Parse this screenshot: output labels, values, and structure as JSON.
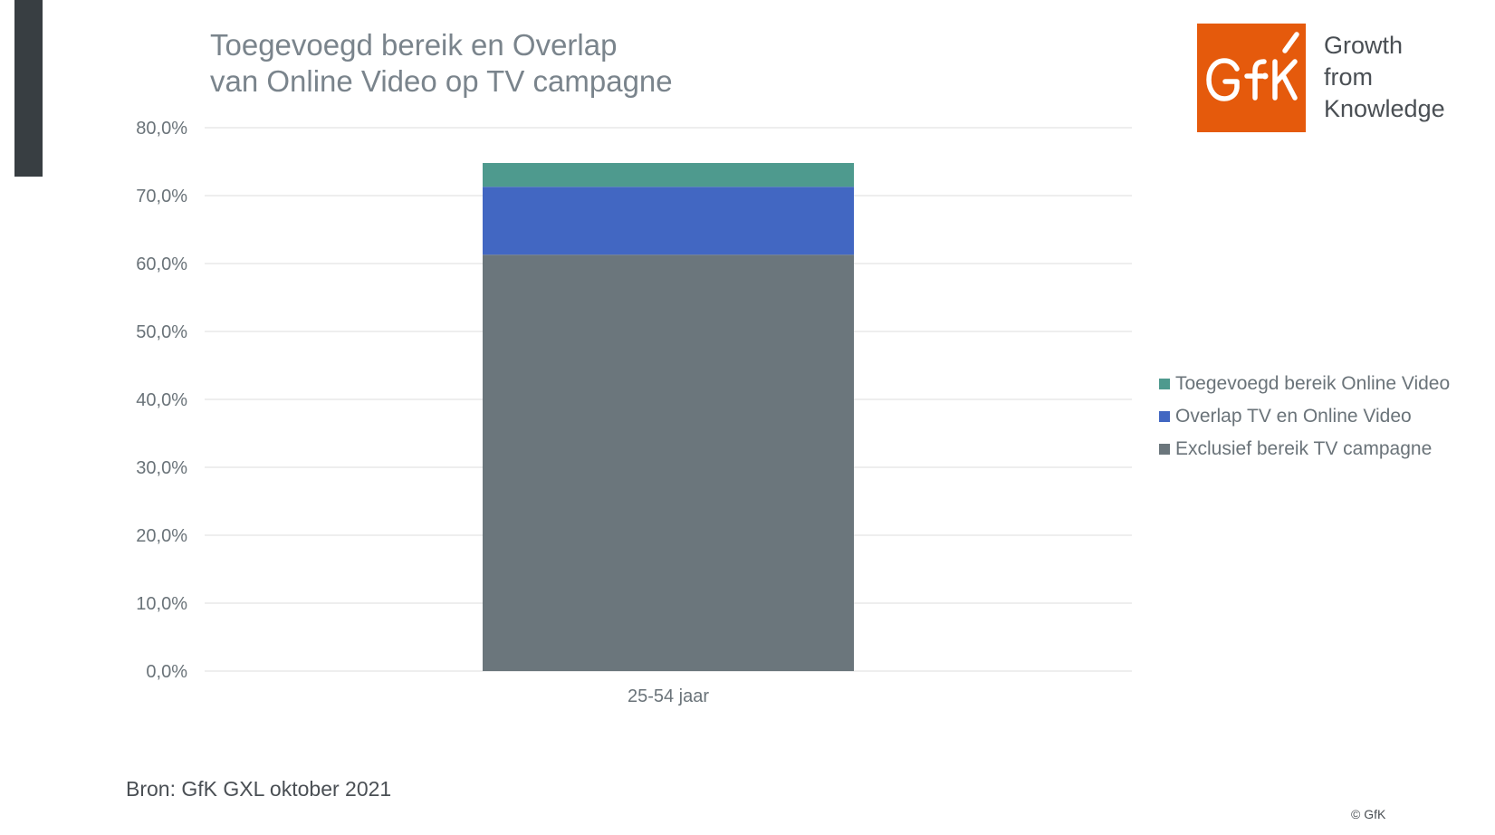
{
  "title": {
    "line1": "Toegevoegd bereik en Overlap",
    "line2": "van Online Video op TV campagne"
  },
  "logo": {
    "mark": "GfK",
    "tagline": [
      "Growth",
      "from",
      "Knowledge"
    ],
    "color": "#e55a0c"
  },
  "source": "Bron: GfK GXL oktober 2021",
  "copyright": "© GfK",
  "chart_data": {
    "type": "bar",
    "stacked": true,
    "categories": [
      "25-54 jaar"
    ],
    "series": [
      {
        "name": "Exclusief bereik TV campagne",
        "values": [
          61.3
        ],
        "color": "#6b767c"
      },
      {
        "name": "Overlap TV en Online Video",
        "values": [
          10.0
        ],
        "color": "#4267c2"
      },
      {
        "name": "Toegevoegd bereik Online Video",
        "values": [
          3.5
        ],
        "color": "#4e9a8e"
      }
    ],
    "ylim": [
      0,
      80
    ],
    "yticks": [
      0,
      10,
      20,
      30,
      40,
      50,
      60,
      70,
      80
    ],
    "ytick_labels": [
      "0,0%",
      "10,0%",
      "20,0%",
      "30,0%",
      "40,0%",
      "50,0%",
      "60,0%",
      "70,0%",
      "80,0%"
    ],
    "grid": true,
    "legend_position": "right",
    "legend_order": [
      "Toegevoegd bereik Online Video",
      "Overlap TV en Online Video",
      "Exclusief bereik TV campagne"
    ]
  }
}
